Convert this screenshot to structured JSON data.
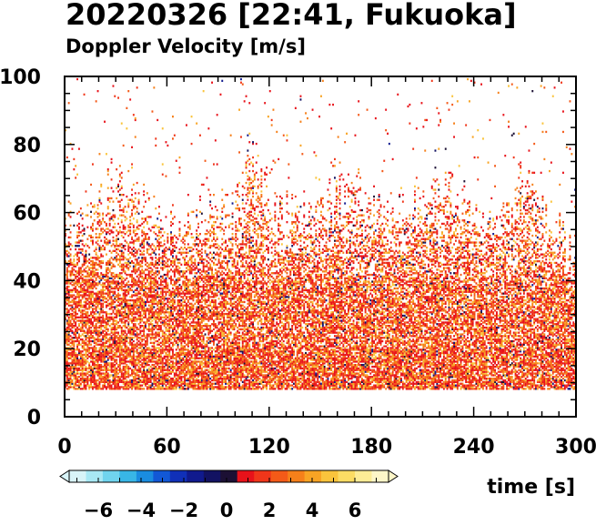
{
  "chart_data": {
    "type": "heatmap",
    "title": "20220326 [22:41, Fukuoka]",
    "subtitle": "Doppler Velocity [m/s]",
    "xlabel": "time [s]",
    "ylabel": "",
    "xlim": [
      0,
      300
    ],
    "ylim": [
      0,
      100
    ],
    "x_ticks": [
      "0",
      "60",
      "120",
      "180",
      "240",
      "300"
    ],
    "y_ticks": [
      "0",
      "20",
      "40",
      "60",
      "80",
      "100"
    ],
    "grid": false,
    "data_floor": 8,
    "top_envelope": {
      "x": [
        0,
        10,
        20,
        30,
        40,
        50,
        60,
        70,
        80,
        90,
        100,
        110,
        115,
        120,
        130,
        140,
        150,
        160,
        170,
        180,
        190,
        200,
        210,
        220,
        230,
        240,
        250,
        260,
        270,
        280,
        290,
        300
      ],
      "y": [
        58,
        60,
        64,
        72,
        68,
        62,
        60,
        58,
        62,
        60,
        64,
        82,
        72,
        60,
        62,
        60,
        66,
        68,
        74,
        62,
        60,
        62,
        66,
        70,
        62,
        60,
        58,
        62,
        72,
        62,
        55,
        45
      ]
    },
    "colorbar": {
      "range": [
        -8,
        8
      ],
      "ticks": [
        "−6",
        "−4",
        "−2",
        "0",
        "2",
        "4",
        "6"
      ],
      "colors": [
        "#d8f4f8",
        "#a8e8f4",
        "#70d4ee",
        "#38b6e6",
        "#1a8ce0",
        "#1258d6",
        "#1030b8",
        "#101a8e",
        "#121262",
        "#1c1034",
        "#e8121a",
        "#f0361a",
        "#f45a18",
        "#f6801a",
        "#f8a424",
        "#fac43c",
        "#fcdc64",
        "#fdec96",
        "#fef6c8"
      ]
    }
  }
}
